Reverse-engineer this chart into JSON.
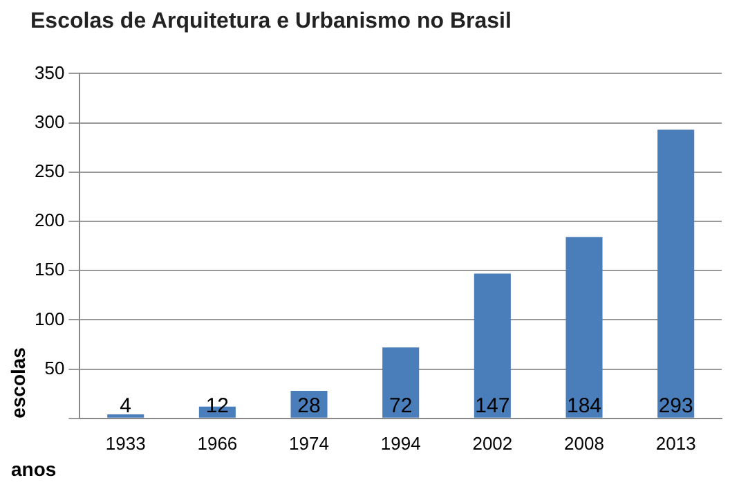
{
  "chart_data": {
    "type": "bar",
    "title": "Escolas de Arquitetura e Urbanismo no Brasil",
    "xlabel": "anos",
    "ylabel": "escolas",
    "categories": [
      "1933",
      "1966",
      "1974",
      "1994",
      "2002",
      "2008",
      "2013"
    ],
    "values": [
      4,
      12,
      28,
      72,
      147,
      184,
      293
    ],
    "color": "#4a7ebb",
    "ylim": [
      0,
      350
    ],
    "yticks": [
      {
        "value": 0,
        "label": null
      },
      50,
      100,
      150,
      200,
      250,
      300,
      350
    ],
    "grid": "y",
    "data_labels": true
  }
}
